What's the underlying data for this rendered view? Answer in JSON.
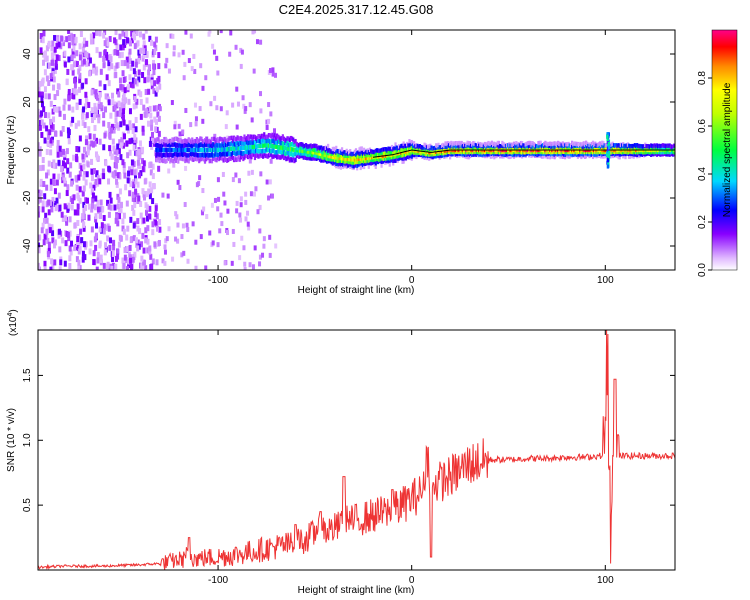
{
  "title": "C2E4.2025.317.12.45.G08",
  "chart_data": [
    {
      "type": "heatmap",
      "name": "spectrogram",
      "xlabel": "Height of straight line (km)",
      "ylabel": "Frequency (Hz)",
      "xlim": [
        -193,
        136
      ],
      "ylim": [
        -50,
        50
      ],
      "xticks": [
        -100,
        0,
        100
      ],
      "yticks": [
        40,
        20,
        0,
        -20,
        -40
      ],
      "colorbar": {
        "label": "Normalized spectral amplitude",
        "range": [
          0.0,
          1.0
        ],
        "ticks": [
          0.0,
          0.2,
          0.4,
          0.6,
          0.8
        ]
      },
      "ridge": {
        "description_points_x": [
          -130,
          -115,
          -100,
          -85,
          -75,
          -60,
          -50,
          -40,
          -30,
          -20,
          -10,
          0,
          10,
          20,
          40,
          60,
          80,
          100,
          136
        ],
        "frequency_hz": [
          0,
          0,
          0,
          1,
          2,
          0,
          -1,
          -3,
          -4,
          -3,
          -2,
          0,
          -1,
          0,
          0,
          0,
          0,
          0,
          0
        ],
        "peak_amplitude": [
          0.3,
          0.35,
          0.4,
          0.45,
          0.5,
          0.55,
          0.65,
          0.8,
          0.85,
          0.8,
          0.8,
          0.85,
          0.85,
          0.9,
          0.9,
          0.95,
          0.95,
          0.95,
          0.6
        ]
      },
      "noise_region_x": [
        -193,
        -130
      ]
    },
    {
      "type": "line",
      "name": "snr",
      "xlabel": "Height of straight line (km)",
      "ylabel": "SNR (10 * v/v)",
      "multiplier_label": "(x10",
      "multiplier_exp": "4",
      "multiplier_close": ")",
      "xlim": [
        -193,
        136
      ],
      "ylim": [
        0,
        1.85
      ],
      "xticks": [
        -100,
        0,
        100
      ],
      "yticks": [
        0.5,
        1.0,
        1.5
      ],
      "series": [
        {
          "name": "SNR",
          "color": "#ee3333",
          "x": [
            -193,
            -180,
            -160,
            -140,
            -130,
            -120,
            -110,
            -100,
            -90,
            -80,
            -70,
            -60,
            -50,
            -40,
            -30,
            -20,
            -10,
            0,
            10,
            20,
            30,
            40,
            50,
            60,
            70,
            80,
            90,
            97,
            100,
            102,
            104,
            106,
            110,
            120,
            136
          ],
          "y": [
            0.02,
            0.03,
            0.03,
            0.04,
            0.05,
            0.08,
            0.09,
            0.1,
            0.12,
            0.15,
            0.18,
            0.2,
            0.28,
            0.32,
            0.38,
            0.42,
            0.45,
            0.55,
            0.65,
            0.72,
            0.82,
            0.85,
            0.85,
            0.86,
            0.86,
            0.87,
            0.87,
            0.88,
            0.88,
            0.9,
            0.9,
            0.88,
            0.88,
            0.88,
            0.88
          ],
          "spikes": [
            {
              "x": -115,
              "y": 0.25
            },
            {
              "x": -60,
              "y": 0.35
            },
            {
              "x": -47,
              "y": 0.45
            },
            {
              "x": -35,
              "y": 0.72
            },
            {
              "x": -10,
              "y": 0.62
            },
            {
              "x": 8,
              "y": 0.95
            },
            {
              "x": 10,
              "y": 0.1
            },
            {
              "x": 101,
              "y": 1.85
            },
            {
              "x": 103,
              "y": 0.05
            },
            {
              "x": 105,
              "y": 1.47
            }
          ]
        }
      ]
    }
  ]
}
